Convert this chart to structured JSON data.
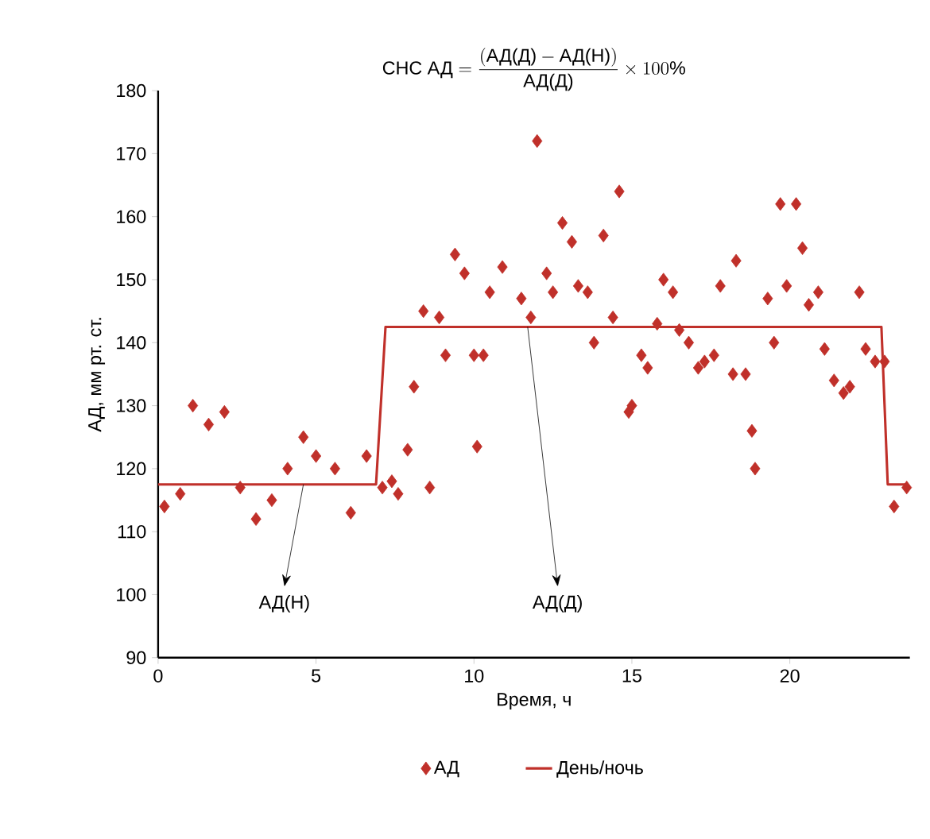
{
  "chart_data": {
    "type": "scatter",
    "title": "\\text{СНС АД} = \\dfrac{(\\text{АД(Д)} - \\text{АД(Н)})}{\\text{АД(Д)}} \\times 100\\%",
    "xlabel": "Время, ч",
    "ylabel": "АД, мм рт. ст.",
    "xlim": [
      0,
      23.8
    ],
    "ylim": [
      90,
      180
    ],
    "xticks": [
      0,
      5,
      10,
      15,
      20
    ],
    "yticks": [
      90,
      100,
      110,
      120,
      130,
      140,
      150,
      160,
      170,
      180
    ],
    "legend": "bottom",
    "annotations": [
      {
        "text": "АД(Н)",
        "x": 4.6,
        "y": 117.5
      },
      {
        "text": "АД(Д)",
        "x": 11.7,
        "y": 142.5
      }
    ],
    "series": [
      {
        "name": "АД",
        "marker": "diamond",
        "color": "#c0302a",
        "x": [
          0.2,
          0.7,
          1.1,
          1.6,
          2.1,
          2.6,
          3.1,
          3.6,
          4.1,
          4.6,
          5.0,
          5.6,
          6.1,
          6.6,
          7.1,
          7.4,
          7.6,
          7.9,
          8.1,
          8.4,
          8.6,
          8.9,
          9.1,
          9.4,
          9.7,
          10.0,
          10.1,
          10.3,
          10.5,
          10.9,
          11.5,
          11.8,
          12.0,
          12.3,
          12.5,
          12.8,
          13.1,
          13.3,
          13.6,
          13.8,
          14.1,
          14.4,
          14.6,
          14.9,
          15.0,
          15.3,
          15.5,
          15.8,
          16.0,
          16.3,
          16.5,
          16.8,
          17.1,
          17.3,
          17.6,
          17.8,
          18.2,
          18.3,
          18.6,
          18.8,
          18.9,
          19.3,
          19.5,
          19.7,
          19.9,
          20.2,
          20.4,
          20.6,
          20.9,
          21.1,
          21.4,
          21.7,
          21.9,
          22.2,
          22.4,
          22.7,
          23.0,
          23.3,
          23.7
        ],
        "values": [
          114,
          116,
          130,
          127,
          129,
          117,
          112,
          115,
          120,
          125,
          122,
          120,
          113,
          122,
          117,
          118,
          116,
          123,
          133,
          145,
          117,
          144,
          138,
          154,
          151,
          138,
          123.5,
          138,
          148,
          152,
          147,
          144,
          172,
          151,
          148,
          159,
          156,
          149,
          148,
          140,
          157,
          144,
          164,
          129,
          130,
          138,
          136,
          143,
          150,
          148,
          142,
          140,
          136,
          137,
          138,
          149,
          135,
          153,
          135,
          126,
          120,
          147,
          140,
          162,
          149,
          162,
          155,
          146,
          148,
          139,
          134,
          132,
          133,
          148,
          139,
          137,
          137,
          114,
          117
        ]
      },
      {
        "name": "День/ночь",
        "type": "line",
        "color": "#c0302a",
        "x": [
          0,
          6.9,
          7.2,
          22.9,
          23.1,
          23.7
        ],
        "values": [
          117.5,
          117.5,
          142.5,
          142.5,
          117.5,
          117.5
        ]
      }
    ]
  }
}
